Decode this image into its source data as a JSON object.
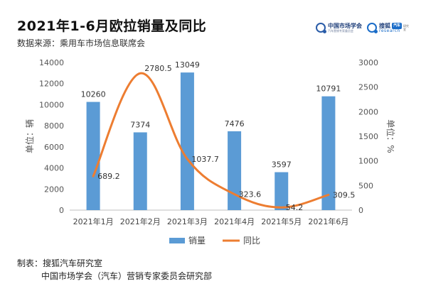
{
  "header": {
    "title": "2021年1-6月欧拉销量及同比",
    "source": "数据来源：乘用车市场信息联席会"
  },
  "logos": {
    "cmsa_main": "中国市场学会",
    "cmsa_sub": "汽车营销专家委员会",
    "sohu_main": "搜狐",
    "sohu_tag": "汽车",
    "sohu_sub": "research",
    "sohu_side": "研究室"
  },
  "footer": {
    "line1": "制表：搜狐汽车研究室",
    "line2": "中国市场学会（汽车）营销专家委员会研究部"
  },
  "chart_data": {
    "type": "bar",
    "categories": [
      "2021年1月",
      "2021年2月",
      "2021年3月",
      "2021年4月",
      "2021年5月",
      "2021年6月"
    ],
    "series": [
      {
        "name": "销量",
        "type": "bar",
        "axis": "left",
        "values": [
          10260,
          7374,
          13049,
          7476,
          3597,
          10791
        ],
        "color": "#5b9bd5"
      },
      {
        "name": "同比",
        "type": "line",
        "axis": "right",
        "values": [
          689.2,
          2780.5,
          1037.7,
          323.6,
          54.2,
          309.5
        ],
        "color": "#ed7d31"
      }
    ],
    "ylabel": "单位：辆",
    "y2label": "单位：%",
    "ylim": [
      0,
      14000
    ],
    "y2lim": [
      0,
      3000
    ],
    "yticks": [
      0,
      2000,
      4000,
      6000,
      8000,
      10000,
      12000,
      14000
    ],
    "y2ticks": [
      0,
      500,
      1000,
      1500,
      2000,
      2500,
      3000
    ],
    "grid": false,
    "legend": "bottom-center"
  }
}
